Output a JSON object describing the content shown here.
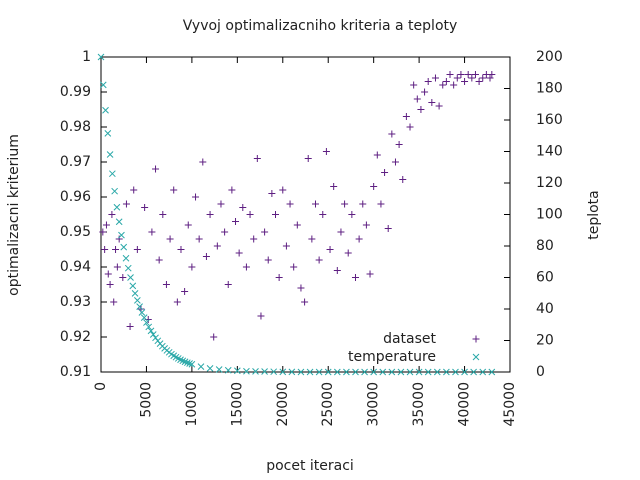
{
  "chart_data": {
    "type": "scatter",
    "title": "Vyvoj optimalizacniho kriteria a teploty",
    "x_label": "pocet iteraci",
    "y_label": "optimalizacni kriterium",
    "y2_label": "teplota",
    "xlim": [
      0,
      45000
    ],
    "xticks": [
      0,
      5000,
      10000,
      15000,
      20000,
      25000,
      30000,
      35000,
      40000,
      45000
    ],
    "ylim": [
      0.91,
      1
    ],
    "yticks": [
      0.91,
      0.92,
      0.93,
      0.94,
      0.95,
      0.96,
      0.97,
      0.98,
      0.99,
      1
    ],
    "y2lim": [
      0,
      200
    ],
    "y2ticks": [
      0,
      20,
      40,
      60,
      80,
      100,
      120,
      140,
      160,
      180,
      200
    ],
    "grid": false,
    "legend": "bottom-right",
    "series": [
      {
        "name": "dataset",
        "color": "#5e1f82",
        "marker": "plus",
        "x": [
          200,
          400,
          600,
          800,
          1000,
          1200,
          1400,
          1600,
          1800,
          2000,
          2400,
          2800,
          3200,
          3600,
          4000,
          4400,
          4800,
          5200,
          5600,
          6000,
          6400,
          6800,
          7200,
          7600,
          8000,
          8400,
          8800,
          9200,
          9600,
          10000,
          10400,
          10800,
          11200,
          11600,
          12000,
          12400,
          12800,
          13200,
          13600,
          14000,
          14400,
          14800,
          15200,
          15600,
          16000,
          16400,
          16800,
          17200,
          17600,
          18000,
          18400,
          18800,
          19200,
          19600,
          20000,
          20400,
          20800,
          21200,
          21600,
          22000,
          22400,
          22800,
          23200,
          23600,
          24000,
          24400,
          24800,
          25200,
          25600,
          26000,
          26400,
          26800,
          27200,
          27600,
          28000,
          28400,
          28800,
          29200,
          29600,
          30000,
          30400,
          30800,
          31200,
          31600,
          32000,
          32400,
          32800,
          33200,
          33600,
          34000,
          34400,
          34800,
          35200,
          35600,
          36000,
          36400,
          36800,
          37200,
          37600,
          38000,
          38400,
          38800,
          39200,
          39600,
          40000,
          40400,
          40800,
          41200,
          41600,
          42000,
          42400,
          42800,
          43000
        ],
        "values": [
          0.95,
          0.945,
          0.952,
          0.938,
          0.935,
          0.955,
          0.93,
          0.945,
          0.94,
          0.948,
          0.937,
          0.958,
          0.923,
          0.962,
          0.945,
          0.928,
          0.957,
          0.925,
          0.95,
          0.968,
          0.942,
          0.955,
          0.935,
          0.948,
          0.962,
          0.93,
          0.945,
          0.933,
          0.952,
          0.94,
          0.96,
          0.948,
          0.97,
          0.943,
          0.955,
          0.92,
          0.946,
          0.958,
          0.95,
          0.935,
          0.962,
          0.953,
          0.944,
          0.957,
          0.94,
          0.955,
          0.948,
          0.971,
          0.926,
          0.95,
          0.942,
          0.961,
          0.955,
          0.937,
          0.962,
          0.946,
          0.958,
          0.94,
          0.952,
          0.934,
          0.93,
          0.971,
          0.948,
          0.958,
          0.942,
          0.955,
          0.973,
          0.945,
          0.963,
          0.939,
          0.95,
          0.958,
          0.944,
          0.955,
          0.937,
          0.948,
          0.958,
          0.952,
          0.938,
          0.963,
          0.972,
          0.958,
          0.967,
          0.951,
          0.978,
          0.97,
          0.975,
          0.965,
          0.983,
          0.98,
          0.992,
          0.988,
          0.985,
          0.99,
          0.993,
          0.987,
          0.994,
          0.986,
          0.992,
          0.993,
          0.995,
          0.992,
          0.994,
          0.995,
          0.993,
          0.995,
          0.994,
          0.995,
          0.993,
          0.994,
          0.995,
          0.994,
          0.995
        ]
      },
      {
        "name": "temperature",
        "color": "#2aa8a8",
        "marker": "cross",
        "axis": "y2",
        "x": [
          0,
          250,
          500,
          750,
          1000,
          1250,
          1500,
          1750,
          2000,
          2250,
          2500,
          2750,
          3000,
          3250,
          3500,
          3750,
          4000,
          4250,
          4500,
          4750,
          5000,
          5250,
          5500,
          5750,
          6000,
          6250,
          6500,
          6750,
          7000,
          7250,
          7500,
          7750,
          8000,
          8250,
          8500,
          8750,
          9000,
          9250,
          9500,
          9750,
          10000,
          11000,
          12000,
          13000,
          14000,
          15000,
          16000,
          17000,
          18000,
          19000,
          20000,
          21000,
          22000,
          23000,
          24000,
          25000,
          26000,
          27000,
          28000,
          29000,
          30000,
          31000,
          32000,
          33000,
          34000,
          35000,
          36000,
          37000,
          38000,
          39000,
          40000,
          41000,
          42000,
          43000
        ],
        "values": [
          200,
          182.3,
          166.2,
          151.5,
          138.1,
          125.9,
          114.8,
          104.6,
          95.4,
          86.9,
          79.3,
          72.2,
          65.9,
          60.0,
          54.7,
          49.9,
          45.5,
          41.5,
          37.8,
          34.5,
          31.4,
          28.6,
          26.1,
          23.8,
          21.7,
          19.8,
          18.0,
          16.4,
          15.0,
          13.7,
          12.5,
          11.3,
          10.3,
          9.4,
          8.6,
          7.8,
          7.1,
          6.5,
          5.9,
          5.4,
          4.9,
          3.4,
          2.3,
          1.6,
          1.1,
          0.8,
          0.5,
          0.4,
          0.3,
          0.2,
          0.1,
          0.1,
          0,
          0,
          0,
          0,
          0,
          0,
          0,
          0,
          0,
          0,
          0,
          0,
          0,
          0,
          0,
          0,
          0,
          0,
          0,
          0,
          0,
          0
        ]
      }
    ]
  }
}
